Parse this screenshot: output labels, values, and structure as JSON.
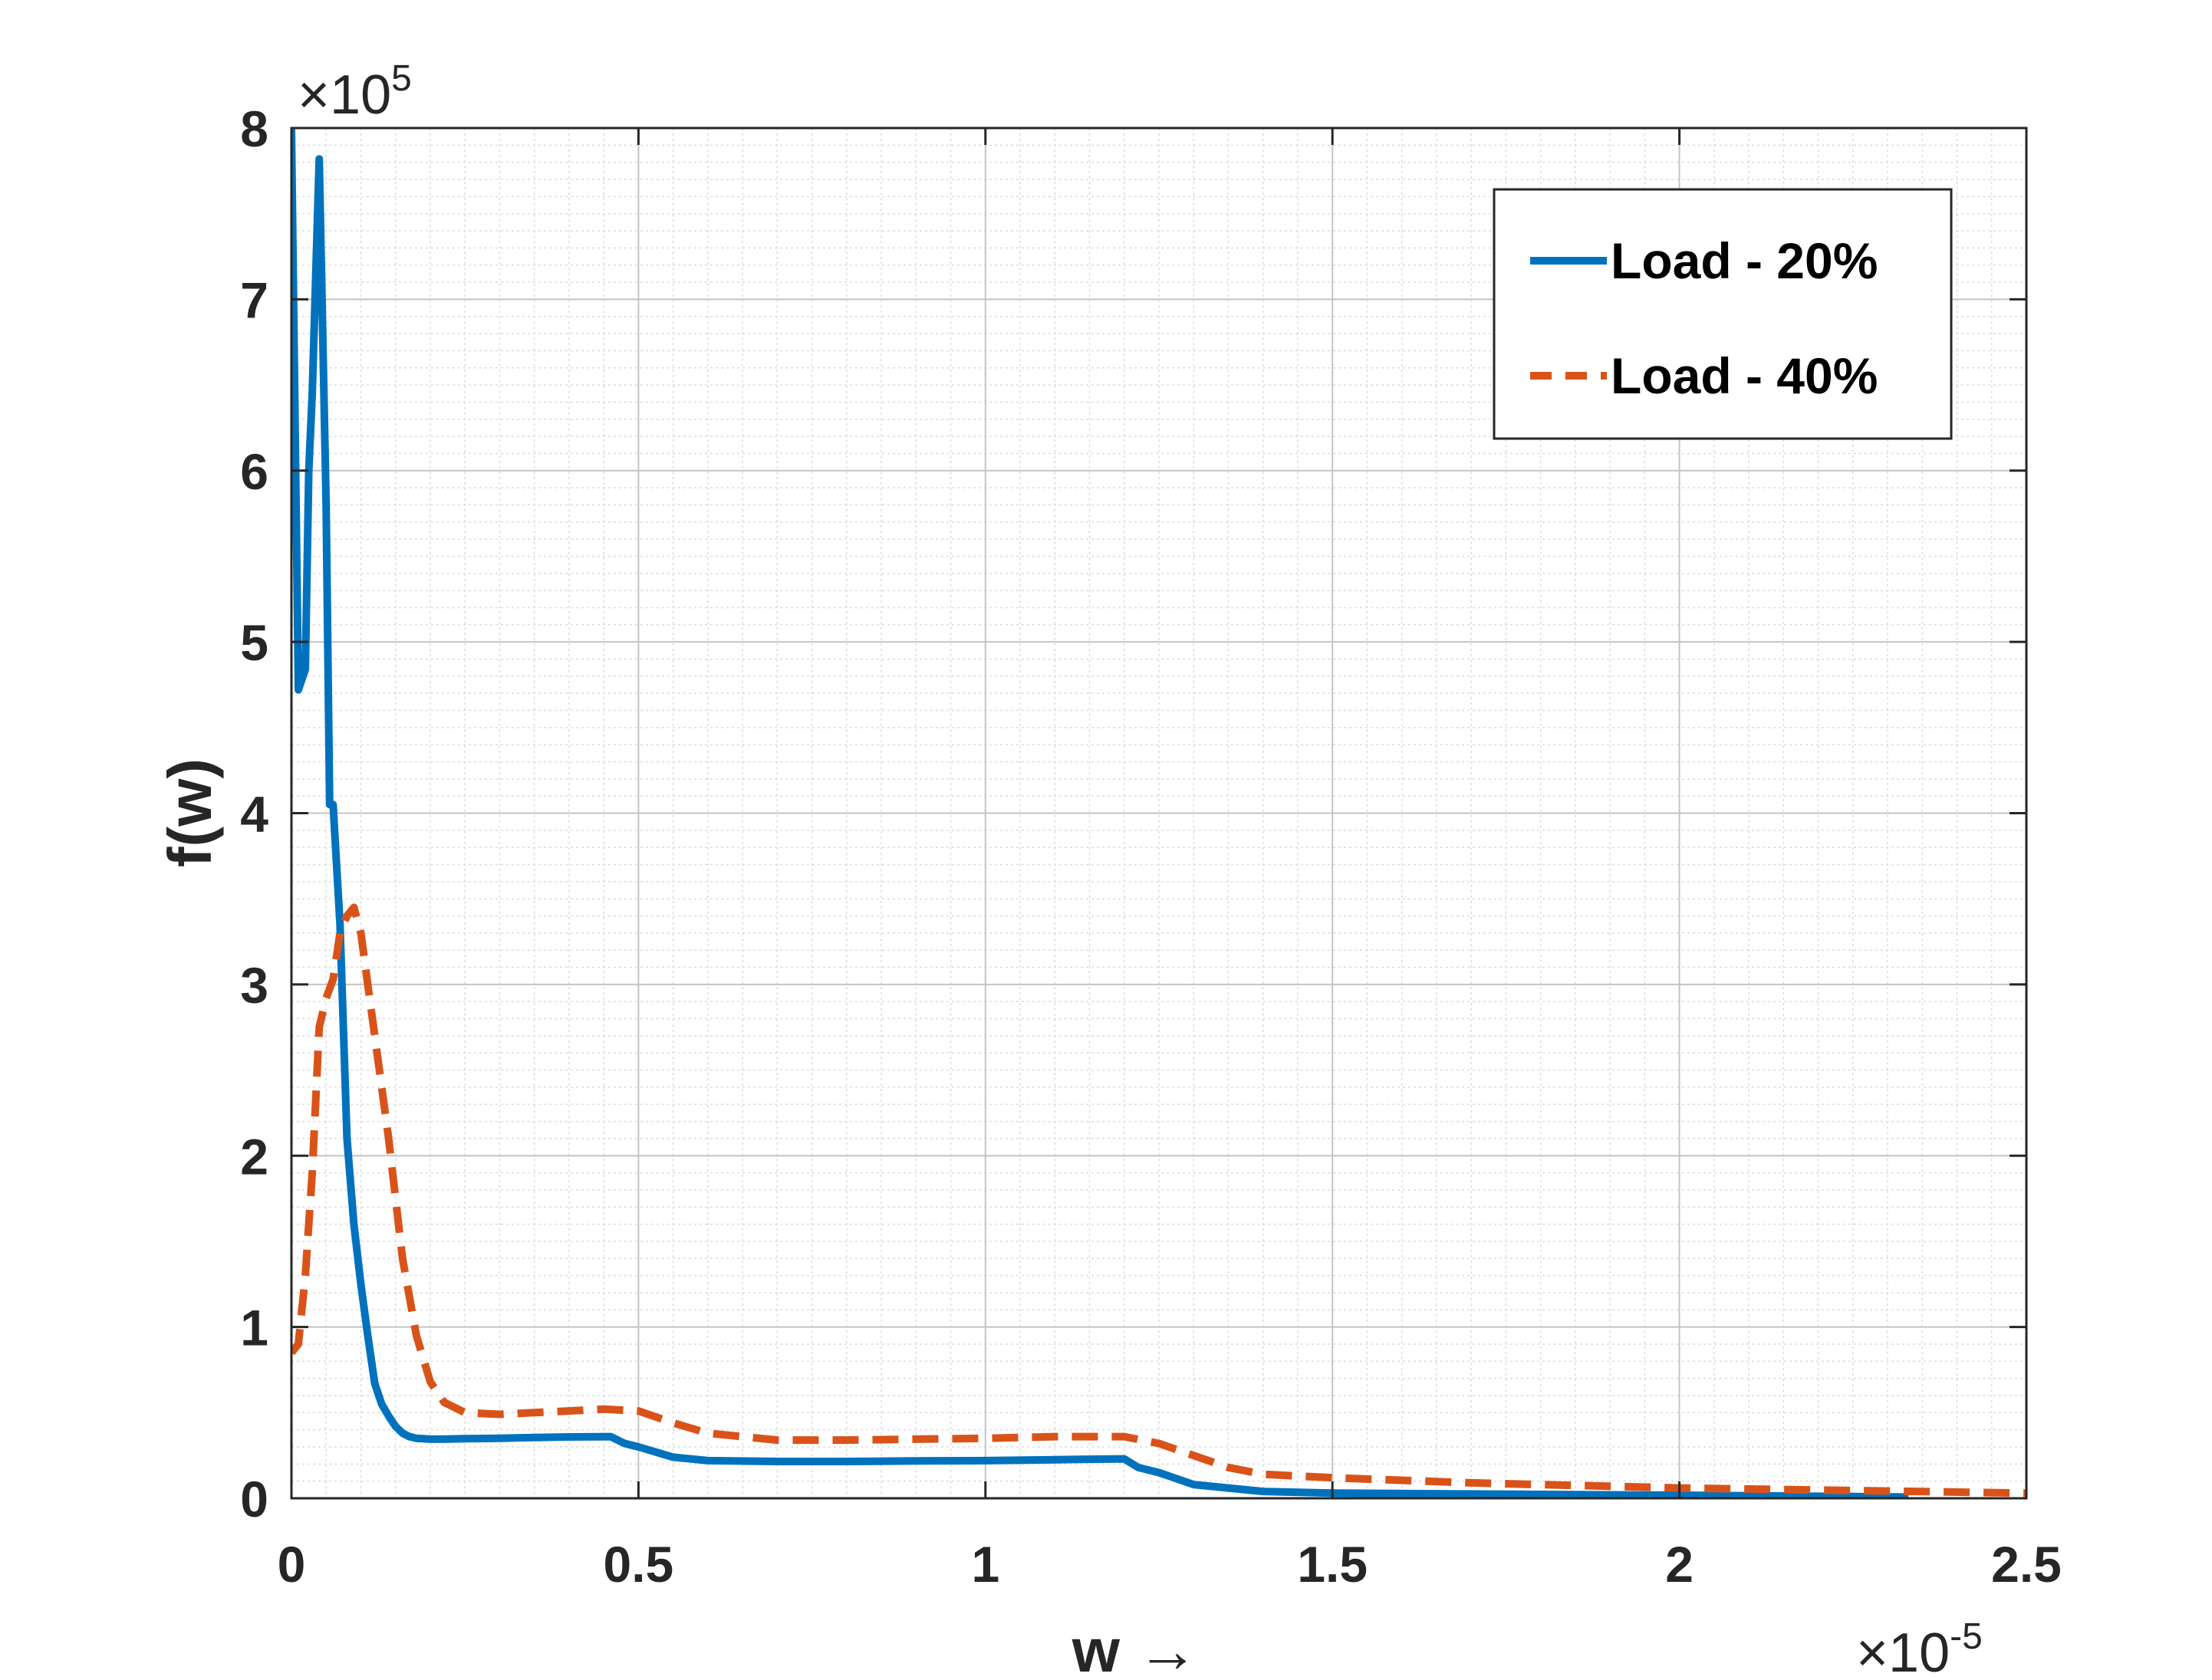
{
  "chart_data": {
    "type": "line",
    "xlabel": "w →",
    "ylabel": "f(w)",
    "x_exponent": {
      "base": "×10",
      "power": "-5"
    },
    "y_exponent": {
      "base": "×10",
      "power": "5"
    },
    "xlim": [
      0,
      2.5e-05
    ],
    "ylim": [
      0,
      800000
    ],
    "xticks": [
      0,
      5e-06,
      1e-05,
      1.5e-05,
      2e-05,
      2.5e-05
    ],
    "xtick_labels": [
      "0",
      "0.5",
      "1",
      "1.5",
      "2",
      "2.5"
    ],
    "yticks": [
      0,
      100000,
      200000,
      300000,
      400000,
      500000,
      600000,
      700000,
      800000
    ],
    "ytick_labels": [
      "0",
      "1",
      "2",
      "3",
      "4",
      "5",
      "6",
      "7",
      "8"
    ],
    "grid": true,
    "minor_grid": true,
    "legend_position": "top-right",
    "series": [
      {
        "name": "Load - 20%",
        "color": "#0072BD",
        "style": "solid",
        "x": [
          0,
          1e-07,
          2e-07,
          2.5e-07,
          3e-07,
          4e-07,
          5e-07,
          5.5e-07,
          6e-07,
          7e-07,
          8e-07,
          9e-07,
          1e-06,
          1.1e-06,
          1.2e-06,
          1.3e-06,
          1.4e-06,
          1.5e-06,
          1.6e-06,
          1.7e-06,
          1.8e-06,
          2e-06,
          2.2e-06,
          2.5e-06,
          3e-06,
          3.5e-06,
          4e-06,
          4.6e-06,
          4.8e-06,
          5e-06,
          5.5e-06,
          6e-06,
          7e-06,
          8e-06,
          9e-06,
          1e-05,
          1.1e-05,
          1.2e-05,
          1.22e-05,
          1.25e-05,
          1.3e-05,
          1.4e-05,
          1.5e-05,
          1.7e-05,
          2e-05,
          2.33e-05
        ],
        "y": [
          800000,
          472000,
          484000,
          600000,
          645000,
          782000,
          580000,
          405000,
          405000,
          335000,
          210000,
          160000,
          125000,
          95000,
          67000,
          55000,
          48000,
          42000,
          38000,
          36000,
          35000,
          34500,
          34500,
          34800,
          35000,
          35500,
          35800,
          36000,
          32000,
          30000,
          24000,
          22000,
          21500,
          21500,
          21800,
          22000,
          22500,
          23000,
          18000,
          15000,
          8000,
          4000,
          3000,
          2500,
          1800,
          700
        ]
      },
      {
        "name": "Load - 40%",
        "color": "#D95319",
        "style": "dashed",
        "x": [
          0,
          1e-07,
          2e-07,
          3e-07,
          4e-07,
          5e-07,
          6e-07,
          7e-07,
          8e-07,
          9e-07,
          1e-06,
          1.1e-06,
          1.2e-06,
          1.4e-06,
          1.6e-06,
          1.8e-06,
          2e-06,
          2.2e-06,
          2.5e-06,
          3e-06,
          3.5e-06,
          4e-06,
          4.5e-06,
          5e-06,
          5.5e-06,
          6e-06,
          7e-06,
          8e-06,
          9e-06,
          1e-05,
          1.1e-05,
          1.2e-05,
          1.25e-05,
          1.3e-05,
          1.35e-05,
          1.4e-05,
          1.5e-05,
          1.7e-05,
          2e-05,
          2.25e-05,
          2.5e-05
        ],
        "y": [
          85000,
          90000,
          130000,
          190000,
          275000,
          292000,
          303000,
          330000,
          340000,
          345000,
          330000,
          300000,
          270000,
          210000,
          140000,
          95000,
          68000,
          56000,
          50000,
          49000,
          50000,
          51000,
          52000,
          51000,
          44000,
          38000,
          34000,
          34000,
          34500,
          35000,
          36000,
          36000,
          32000,
          25000,
          18000,
          14000,
          12000,
          9000,
          6000,
          4500,
          3000
        ]
      }
    ]
  }
}
